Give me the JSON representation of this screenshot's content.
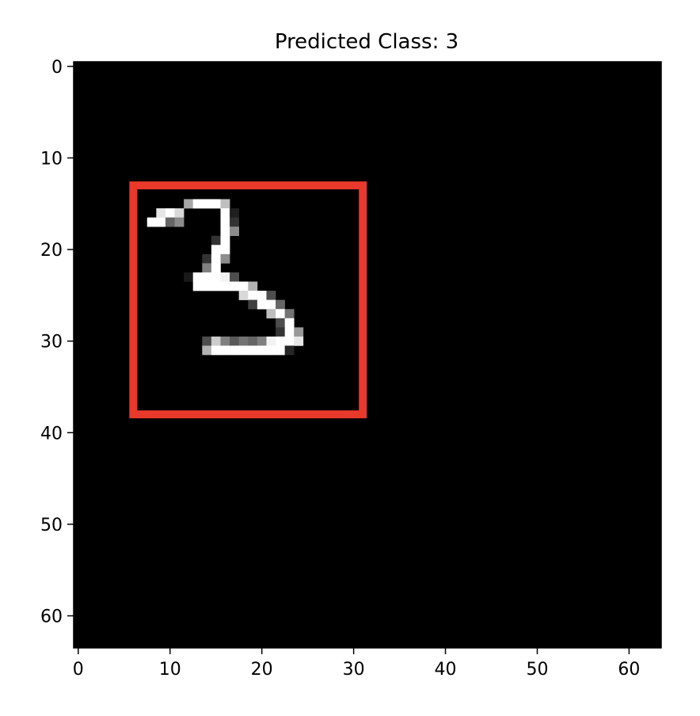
{
  "chart_data": {
    "type": "heatmap",
    "title": "Predicted Class: 3",
    "xlabel": "",
    "ylabel": "",
    "grid": false,
    "colormap": "gray",
    "image_shape": [
      64,
      64
    ],
    "xlim": [
      -0.5,
      63.5
    ],
    "ylim": [
      63.5,
      -0.5
    ],
    "xticks": [
      0,
      10,
      20,
      30,
      40,
      50,
      60
    ],
    "yticks": [
      0,
      10,
      20,
      30,
      40,
      50,
      60
    ],
    "bounding_box": {
      "x0": 6,
      "y0": 13,
      "x1": 31,
      "y1": 38,
      "color": "#e8392b"
    },
    "pixels": [
      [
        15,
        12,
        0.65
      ],
      [
        15,
        13,
        1
      ],
      [
        15,
        14,
        1
      ],
      [
        15,
        15,
        1
      ],
      [
        15,
        16,
        0.75
      ],
      [
        16,
        9,
        0.9
      ],
      [
        16,
        10,
        1
      ],
      [
        16,
        11,
        0.85
      ],
      [
        16,
        16,
        1
      ],
      [
        16,
        17,
        0.12
      ],
      [
        17,
        8,
        1
      ],
      [
        17,
        9,
        1
      ],
      [
        17,
        10,
        0.4
      ],
      [
        17,
        11,
        0.55
      ],
      [
        17,
        16,
        1
      ],
      [
        17,
        17,
        0.2
      ],
      [
        18,
        16,
        1
      ],
      [
        18,
        17,
        0.55
      ],
      [
        19,
        15,
        0.2
      ],
      [
        19,
        16,
        1
      ],
      [
        20,
        15,
        1
      ],
      [
        20,
        16,
        1
      ],
      [
        21,
        14,
        0.2
      ],
      [
        21,
        15,
        1
      ],
      [
        21,
        16,
        0.55
      ],
      [
        22,
        14,
        0.5
      ],
      [
        22,
        15,
        1
      ],
      [
        23,
        12,
        0.1
      ],
      [
        23,
        13,
        1
      ],
      [
        23,
        14,
        1
      ],
      [
        23,
        15,
        1
      ],
      [
        23,
        16,
        0.95
      ],
      [
        23,
        17,
        0.3
      ],
      [
        24,
        13,
        1
      ],
      [
        24,
        14,
        1
      ],
      [
        24,
        15,
        1
      ],
      [
        24,
        16,
        1
      ],
      [
        24,
        17,
        1
      ],
      [
        24,
        18,
        1
      ],
      [
        24,
        19,
        0.7
      ],
      [
        25,
        18,
        0.85
      ],
      [
        25,
        19,
        1
      ],
      [
        25,
        20,
        1
      ],
      [
        25,
        21,
        0.3
      ],
      [
        26,
        19,
        0.25
      ],
      [
        26,
        20,
        1
      ],
      [
        26,
        21,
        1
      ],
      [
        26,
        22,
        0.4
      ],
      [
        27,
        21,
        0.75
      ],
      [
        27,
        22,
        1
      ],
      [
        27,
        23,
        0.45
      ],
      [
        28,
        22,
        0.3
      ],
      [
        28,
        23,
        1
      ],
      [
        29,
        22,
        0.2
      ],
      [
        29,
        23,
        1
      ],
      [
        29,
        24,
        0.6
      ],
      [
        30,
        14,
        0.3
      ],
      [
        30,
        15,
        0.8
      ],
      [
        30,
        16,
        0.5
      ],
      [
        30,
        17,
        0.35
      ],
      [
        30,
        18,
        0.45
      ],
      [
        30,
        19,
        0.4
      ],
      [
        30,
        20,
        0.5
      ],
      [
        30,
        21,
        0.95
      ],
      [
        30,
        22,
        1
      ],
      [
        30,
        23,
        1
      ],
      [
        30,
        24,
        0.9
      ],
      [
        31,
        14,
        0.7
      ],
      [
        31,
        15,
        1
      ],
      [
        31,
        16,
        1
      ],
      [
        31,
        17,
        1
      ],
      [
        31,
        18,
        1
      ],
      [
        31,
        19,
        1
      ],
      [
        31,
        20,
        1
      ],
      [
        31,
        21,
        1
      ],
      [
        31,
        22,
        1
      ],
      [
        31,
        23,
        0.15
      ]
    ]
  }
}
